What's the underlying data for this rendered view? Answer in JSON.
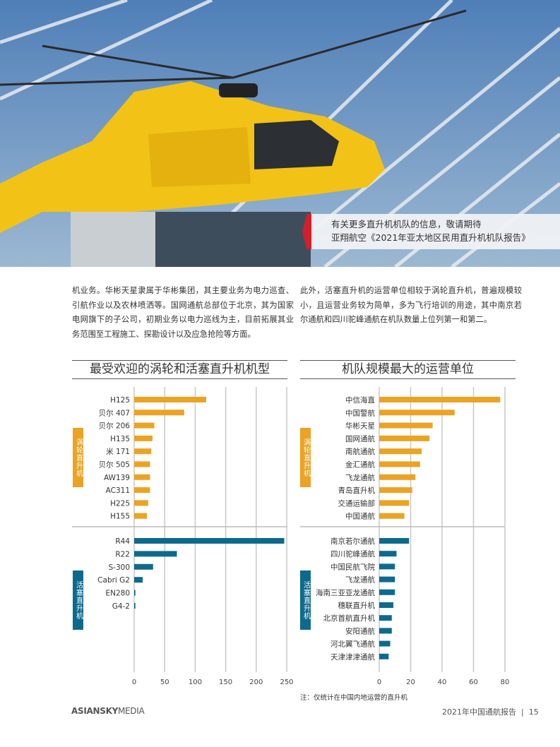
{
  "caption": {
    "line1": "有关更多直升机机队的信息，敬请期待",
    "line2": "亚翔航空《2021年亚太地区民用直升机机队报告》"
  },
  "paragraphs": {
    "left": "机业务。华彬天星隶属于华彬集团，其主要业务为电力巡查、引航作业以及农林喷洒等。国网通航总部位于北京，其为国家电网旗下的子公司，初期业务以电力巡线为主，目前拓展其业务范围至工程施工、探勘设计以及应急抢险等方面。",
    "right": "此外，活塞直升机的运营单位相较于涡轮直升机，普遍规模较小，且运营业务较为简单，多为飞行培训的用途，其中南京若尔通航和四川驼峰通航在机队数量上位列第一和第二。"
  },
  "colors": {
    "turbine": "#eba323",
    "piston": "#0e6a8c",
    "caption_accent": "#d0202a"
  },
  "chart_data": [
    {
      "type": "bar",
      "orientation": "horizontal",
      "title": "最受欢迎的涡轮和活塞直升机机型",
      "xlim": [
        0,
        250
      ],
      "xticks": [
        0,
        50,
        100,
        150,
        200,
        250
      ],
      "grid": true,
      "groups": [
        {
          "name": "涡轮直升机",
          "categories": [
            "H125",
            "贝尔 407",
            "贝尔 206",
            "H135",
            "米 171",
            "贝尔 505",
            "AW139",
            "AC311",
            "H225",
            "H155"
          ],
          "values": [
            118,
            82,
            33,
            30,
            28,
            26,
            26,
            26,
            23,
            21
          ]
        },
        {
          "name": "活塞直升机",
          "categories": [
            "R44",
            "R22",
            "S-300",
            "Cabri G2",
            "EN280",
            "G4-2"
          ],
          "values": [
            246,
            70,
            31,
            14,
            2,
            2
          ]
        }
      ]
    },
    {
      "type": "bar",
      "orientation": "horizontal",
      "title": "机队规模最大的运营单位",
      "xlim": [
        0,
        80
      ],
      "xticks": [
        0,
        20,
        40,
        60,
        80
      ],
      "grid": true,
      "groups": [
        {
          "name": "涡轮直升机",
          "categories": [
            "中信海直",
            "中国警航",
            "华彬天星",
            "国网通航",
            "南航通航",
            "金汇通航",
            "飞龙通航",
            "青岛直升机",
            "交通运输部",
            "中国通航"
          ],
          "values": [
            77,
            48,
            34,
            32,
            27,
            26,
            23,
            21,
            19,
            16
          ]
        },
        {
          "name": "活塞直升机",
          "categories": [
            "南京若尔通航",
            "四川驼峰通航",
            "中国民航飞院",
            "飞龙通航",
            "海南三亚亚龙通航",
            "穗联直升机",
            "北京首航直升机",
            "安阳通航",
            "河北翼飞通航",
            "天津津津通航"
          ],
          "values": [
            19,
            11,
            10,
            10,
            10,
            9,
            8,
            8,
            7,
            6
          ]
        }
      ]
    }
  ],
  "note": "注：仅统计在中国内地运营的直升机",
  "footer": {
    "logo_bold": "ASIANSKY",
    "logo_light": "MEDIA",
    "report": "2021年中国通航报告",
    "page": "15"
  }
}
